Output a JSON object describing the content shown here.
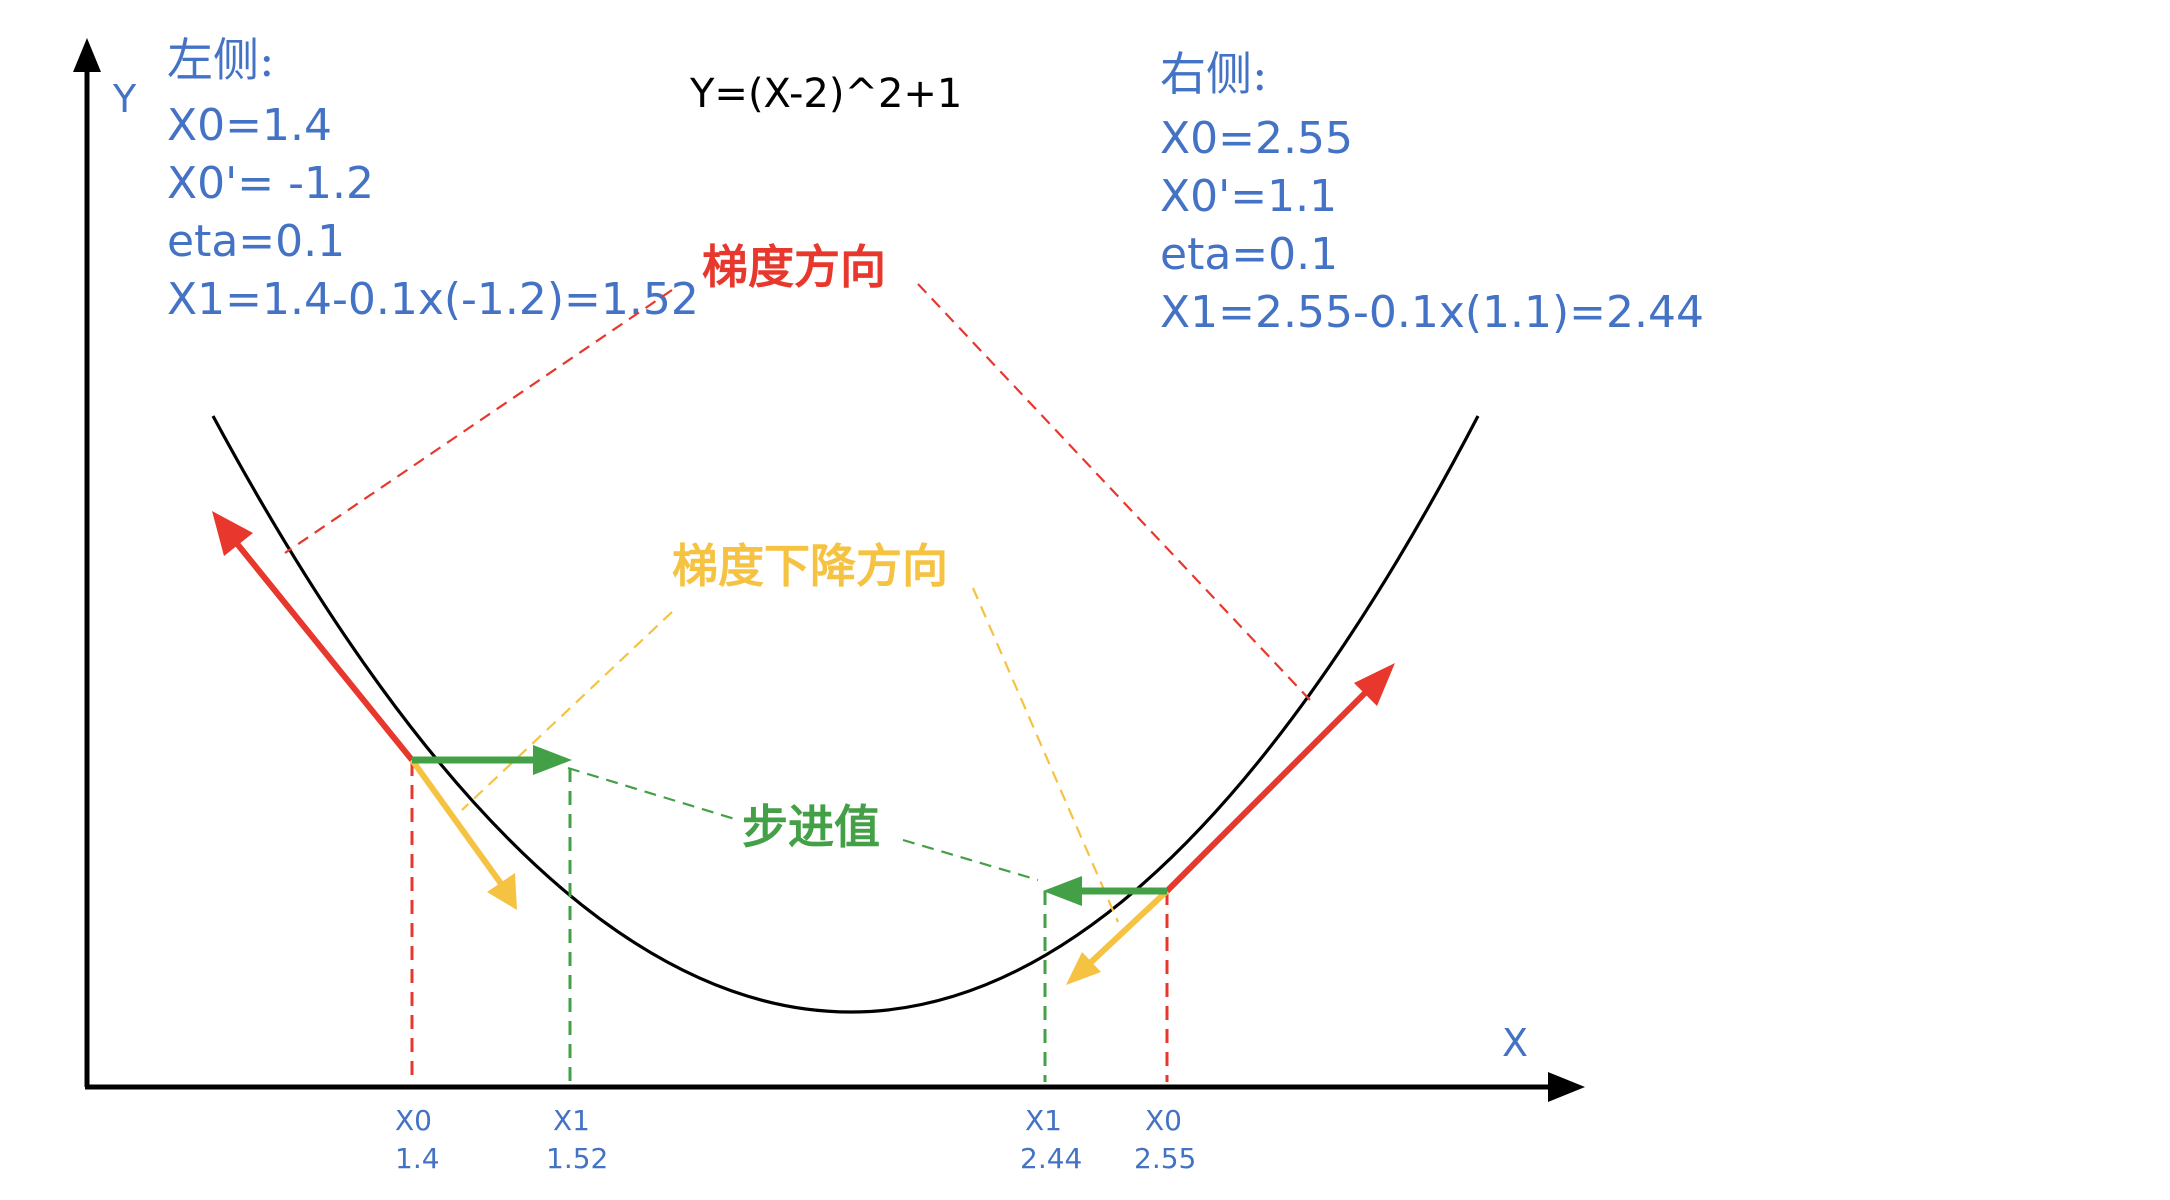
{
  "formula": "Y=(X-2)^2+1",
  "axes": {
    "x_label": "X",
    "y_label": "Y"
  },
  "left_panel": {
    "title": "左侧:",
    "lines": [
      "X0=1.4",
      "X0'= -1.2",
      "eta=0.1",
      "X1=1.4-0.1x(-1.2)=1.52"
    ]
  },
  "right_panel": {
    "title": "右侧:",
    "lines": [
      "X0=2.55",
      "X0'=1.1",
      "eta=0.1",
      "X1=2.55-0.1x(1.1)=2.44"
    ]
  },
  "labels": {
    "gradient_direction": "梯度方向",
    "descent_direction": "梯度下降方向",
    "step_value": "步进值"
  },
  "ticks": [
    {
      "name": "X0",
      "value": "1.4"
    },
    {
      "name": "X1",
      "value": "1.52"
    },
    {
      "name": "X1",
      "value": "2.44"
    },
    {
      "name": "X0",
      "value": "2.55"
    }
  ],
  "colors": {
    "gradient": "#e8372c",
    "descent": "#f5c242",
    "step": "#43a047",
    "annotation": "#4472c4",
    "curve": "#000000"
  }
}
